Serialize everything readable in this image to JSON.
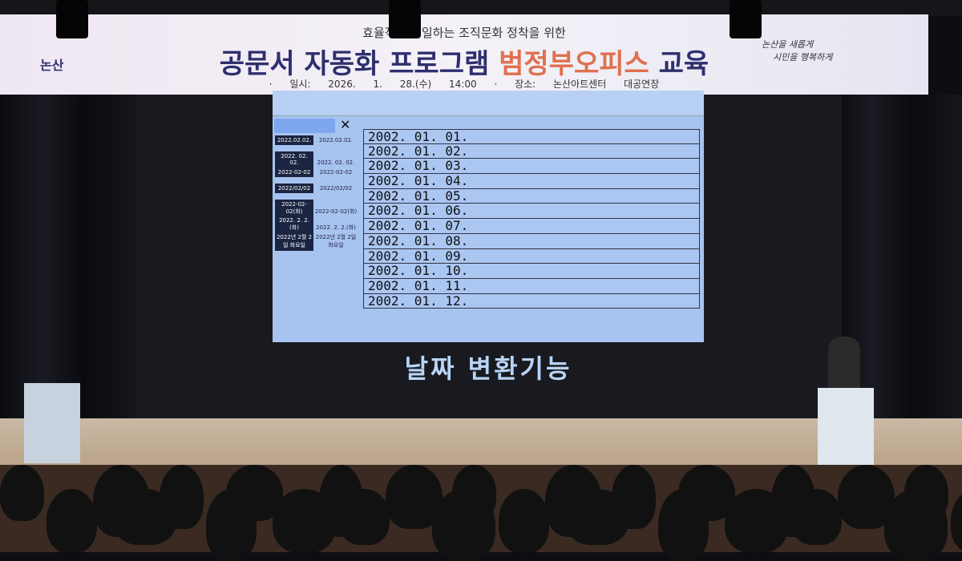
{
  "banner": {
    "subtitle": "효율적으로 일하는 조직문화 정착을 위한",
    "title_part1": "공문서 자동화 프로그램",
    "title_highlight": "범정부오피스",
    "title_part2": "교육",
    "date": "· 일시: 2026. 1. 28.(수) 14:00",
    "place": "· 장소: 논산아트센터 대공연장",
    "logo_text": "논산",
    "slogan_line1": "논산을 새롭게",
    "slogan_line2": "시민을 행복하게",
    "highlight_color": "#e0704f",
    "title_color": "#2e2f6e"
  },
  "screen": {
    "close_icon": "x-icon",
    "formats": [
      {
        "tag": "2022.02.02.",
        "value": "2022.02.02."
      },
      {
        "tag": "2022. 02. 02.",
        "value": "2022. 02. 02."
      },
      {
        "tag": "2022-02-02",
        "value": "2022-02-02"
      },
      {
        "tag": "2022/02/02",
        "value": "2022/02/02"
      },
      {
        "tag": "2022-02-02(화)",
        "value": "2022-02-02(화)"
      },
      {
        "tag": "2022. 2. 2.(화)",
        "value": "2022. 2. 2.(화)"
      },
      {
        "tag": "2022년 2월 2일 화요일",
        "value": "2022년 2월 2일 화요일"
      }
    ],
    "rows": [
      "2002. 01. 01.",
      "2002. 01. 02.",
      "2002. 01. 03.",
      "2002. 01. 04.",
      "2002. 01. 05.",
      "2002. 01. 06.",
      "2002. 01. 07.",
      "2002. 01. 08.",
      "2002. 01. 09.",
      "2002. 01. 10.",
      "2002. 01. 11.",
      "2002. 01. 12."
    ],
    "caption": "날짜 변환기능"
  }
}
